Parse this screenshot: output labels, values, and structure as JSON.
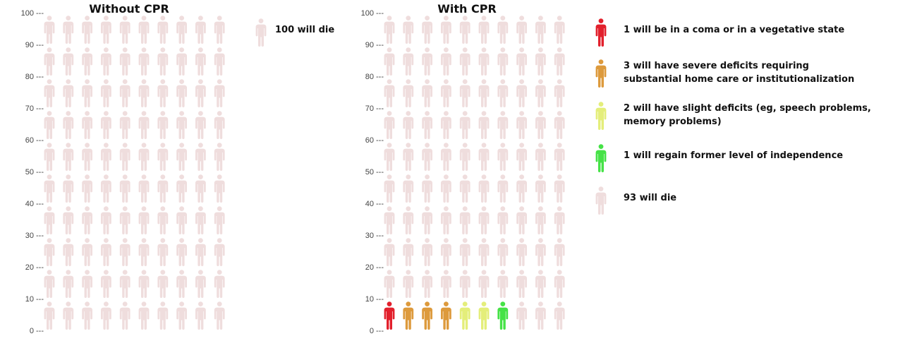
{
  "colors": {
    "die": "#efdddd",
    "coma": "#e2202c",
    "severe": "#dd9a3c",
    "slight": "#e4ee7a",
    "independent": "#45e246",
    "tick_text": "#444444",
    "title_text": "#111111"
  },
  "chart_data": [
    {
      "type": "pictograph",
      "title": "Without CPR",
      "ylim": [
        0,
        100
      ],
      "yticks": [
        0,
        10,
        20,
        30,
        40,
        50,
        60,
        70,
        80,
        90,
        100
      ],
      "ytick_labels": [
        "0 ---",
        "10 ---",
        "20 ---",
        "30 ---",
        "40 ---",
        "50 ---",
        "60 ---",
        "70 ---",
        "80 ---",
        "90 ---",
        "100 ---"
      ],
      "total": 100,
      "icons_per_row": 10,
      "categories": [
        {
          "key": "die",
          "count": 100,
          "label": "100 will die"
        }
      ]
    },
    {
      "type": "pictograph",
      "title": "With CPR",
      "ylim": [
        0,
        100
      ],
      "yticks": [
        0,
        10,
        20,
        30,
        40,
        50,
        60,
        70,
        80,
        90,
        100
      ],
      "ytick_labels": [
        "0 ---",
        "10 ---",
        "20 ---",
        "30 ---",
        "40 ---",
        "50 ---",
        "60 ---",
        "70 ---",
        "80 ---",
        "90 ---",
        "100 ---"
      ],
      "total": 100,
      "icons_per_row": 10,
      "categories": [
        {
          "key": "coma",
          "count": 1,
          "label": "1 will be in a coma or in a vegetative state"
        },
        {
          "key": "severe",
          "count": 3,
          "label": "3 will have severe deficits requiring\nsubstantial home care or institutionalization"
        },
        {
          "key": "slight",
          "count": 2,
          "label": "2 will have slight deficits (eg, speech problems,\nmemory problems)"
        },
        {
          "key": "independent",
          "count": 1,
          "label": "1 will regain former level of independence"
        },
        {
          "key": "die",
          "count": 93,
          "label": "93 will die"
        }
      ]
    }
  ]
}
